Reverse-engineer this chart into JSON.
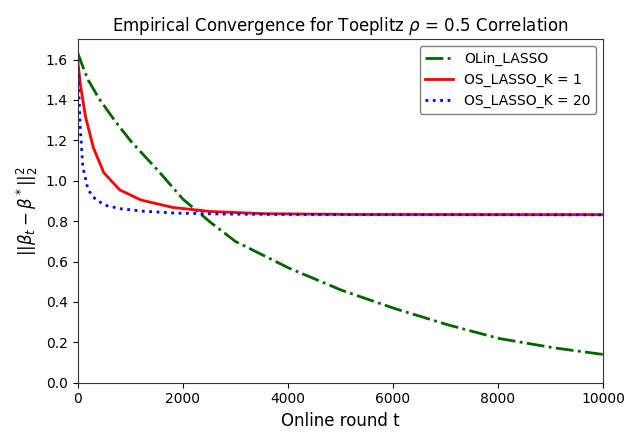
{
  "title": "Empirical Convergence for Toeplitz $\\rho$ = 0.5 Correlation",
  "xlabel": "Online round t",
  "ylabel": "$||\\beta_t - \\beta^*||_2^2$",
  "xlim": [
    0,
    10000
  ],
  "ylim": [
    0,
    1.7
  ],
  "x_ticks": [
    0,
    2000,
    4000,
    6000,
    8000,
    10000
  ],
  "y_ticks": [
    0.0,
    0.2,
    0.4,
    0.6,
    0.8,
    1.0,
    1.2,
    1.4,
    1.6
  ],
  "legend_labels": [
    "OLin_LASSO",
    "OS_LASSO_K = 1",
    "OS_LASSO_K = 20"
  ],
  "olin_key_t": [
    1,
    50,
    100,
    200,
    400,
    700,
    1000,
    1500,
    2000,
    2500,
    3000,
    4000,
    5000,
    6000,
    7000,
    8000,
    9000,
    10000
  ],
  "olin_key_y": [
    1.635,
    1.6,
    1.565,
    1.5,
    1.41,
    1.3,
    1.2,
    1.06,
    0.91,
    0.8,
    0.7,
    0.57,
    0.46,
    0.37,
    0.29,
    0.22,
    0.175,
    0.14
  ],
  "os1_key_t": [
    1,
    50,
    150,
    300,
    500,
    800,
    1200,
    1800,
    2500,
    3500,
    5000,
    10000
  ],
  "os1_key_y": [
    1.6,
    1.485,
    1.32,
    1.165,
    1.04,
    0.955,
    0.905,
    0.868,
    0.848,
    0.837,
    0.833,
    0.832
  ],
  "os20_key_t": [
    1,
    20,
    50,
    100,
    200,
    350,
    550,
    800,
    1200,
    1800,
    2500,
    3500,
    5000,
    10000
  ],
  "os20_key_y": [
    1.635,
    1.48,
    1.27,
    1.07,
    0.955,
    0.905,
    0.877,
    0.862,
    0.85,
    0.84,
    0.836,
    0.833,
    0.832,
    0.831
  ],
  "olin_color": "#006400",
  "os1_color": "#ff0000",
  "os20_color": "#0000ff",
  "linewidth": 2.0,
  "n_points": 2000,
  "figsize": [
    6.4,
    4.45
  ],
  "dpi": 100
}
